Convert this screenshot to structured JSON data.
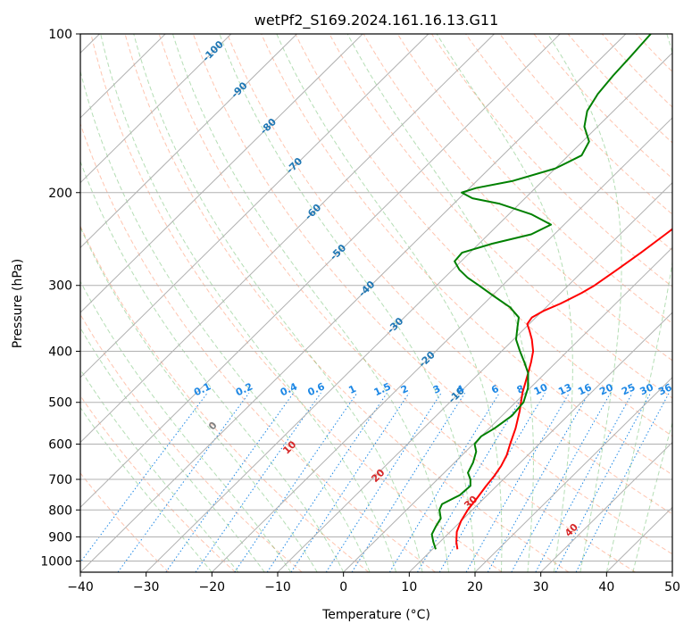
{
  "chart_data": {
    "type": "line",
    "title": "wetPf2_S169.2024.161.16.13.G11",
    "xlabel": "Temperature (°C)",
    "ylabel": "Pressure (hPa)",
    "xlim": [
      -40,
      50
    ],
    "ylim": [
      1050,
      100
    ],
    "y_scale": "log",
    "grid": true,
    "xticks": [
      "−40",
      "−30",
      "−20",
      "−10",
      "0",
      "10",
      "20",
      "30",
      "40",
      "50"
    ],
    "xtick_values": [
      -40,
      -30,
      -20,
      -10,
      0,
      10,
      20,
      30,
      40,
      50
    ],
    "yticks": [
      "100",
      "200",
      "300",
      "400",
      "500",
      "600",
      "700",
      "800",
      "900",
      "1000"
    ],
    "ytick_values": [
      100,
      200,
      300,
      400,
      500,
      600,
      700,
      800,
      900,
      1000
    ],
    "skew_deg_per_decade": 81.2,
    "series": [
      {
        "color": "#ff0000",
        "points": [
          [
            950,
            13.8
          ],
          [
            920,
            12.5
          ],
          [
            880,
            11.0
          ],
          [
            840,
            10.0
          ],
          [
            800,
            9.3
          ],
          [
            760,
            8.9
          ],
          [
            720,
            8.4
          ],
          [
            690,
            8.1
          ],
          [
            660,
            7.6
          ],
          [
            630,
            6.8
          ],
          [
            600,
            5.6
          ],
          [
            560,
            4.0
          ],
          [
            520,
            2.0
          ],
          [
            480,
            -0.4
          ],
          [
            440,
            -2.6
          ],
          [
            420,
            -3.8
          ],
          [
            400,
            -5.2
          ],
          [
            380,
            -7.2
          ],
          [
            365,
            -9.0
          ],
          [
            355,
            -10.3
          ],
          [
            345,
            -10.6
          ],
          [
            335,
            -9.8
          ],
          [
            325,
            -8.4
          ],
          [
            310,
            -6.8
          ],
          [
            300,
            -6.0
          ],
          [
            280,
            -5.0
          ],
          [
            260,
            -4.0
          ],
          [
            240,
            -3.1
          ],
          [
            225,
            -2.4
          ],
          [
            210,
            -2.5
          ],
          [
            195,
            -3.8
          ],
          [
            180,
            -5.6
          ],
          [
            165,
            -7.8
          ],
          [
            150,
            -10.0
          ],
          [
            140,
            -12.0
          ],
          [
            130,
            -14.5
          ],
          [
            122,
            -17.0
          ],
          [
            115,
            -19.5
          ],
          [
            110,
            -21.0
          ],
          [
            105,
            -22.5
          ],
          [
            100,
            -24.0
          ]
        ]
      },
      {
        "color": "#008000",
        "points": [
          [
            950,
            10.5
          ],
          [
            920,
            9.0
          ],
          [
            890,
            7.6
          ],
          [
            860,
            7.0
          ],
          [
            830,
            6.5
          ],
          [
            800,
            5.0
          ],
          [
            780,
            4.5
          ],
          [
            750,
            5.8
          ],
          [
            720,
            6.0
          ],
          [
            700,
            5.0
          ],
          [
            680,
            3.6
          ],
          [
            650,
            2.8
          ],
          [
            620,
            1.6
          ],
          [
            600,
            0.2
          ],
          [
            580,
            0.0
          ],
          [
            560,
            0.8
          ],
          [
            530,
            1.5
          ],
          [
            500,
            1.2
          ],
          [
            470,
            -0.3
          ],
          [
            440,
            -2.6
          ],
          [
            420,
            -4.8
          ],
          [
            400,
            -7.2
          ],
          [
            380,
            -9.6
          ],
          [
            360,
            -11.3
          ],
          [
            345,
            -12.6
          ],
          [
            330,
            -15.5
          ],
          [
            315,
            -19.5
          ],
          [
            300,
            -23.6
          ],
          [
            290,
            -26.5
          ],
          [
            280,
            -29.0
          ],
          [
            270,
            -31.0
          ],
          [
            260,
            -31.2
          ],
          [
            250,
            -28.0
          ],
          [
            240,
            -23.5
          ],
          [
            230,
            -22.0
          ],
          [
            220,
            -26.5
          ],
          [
            210,
            -33.0
          ],
          [
            205,
            -38.0
          ],
          [
            200,
            -40.5
          ],
          [
            196,
            -39.0
          ],
          [
            190,
            -34.5
          ],
          [
            180,
            -30.0
          ],
          [
            170,
            -28.0
          ],
          [
            160,
            -29.0
          ],
          [
            150,
            -32.0
          ],
          [
            140,
            -34.0
          ],
          [
            130,
            -35.0
          ],
          [
            120,
            -35.5
          ],
          [
            110,
            -35.8
          ],
          [
            105,
            -36.0
          ],
          [
            100,
            -36.2
          ]
        ]
      }
    ],
    "background_lines": {
      "isotherm_labels": [
        "-100",
        "-90",
        "-80",
        "-70",
        "-60",
        "-50",
        "-40",
        "-30",
        "-20",
        "-10"
      ],
      "dry_adiabat_labels": [
        "0",
        "10",
        "20",
        "30",
        "40"
      ],
      "mixing_ratio_labels": [
        "0.1",
        "0.2",
        "0.4",
        "0.6",
        "1",
        "1.5",
        "2",
        "3",
        "4",
        "6",
        "8",
        "10",
        "13",
        "16",
        "20",
        "25",
        "30",
        "36"
      ]
    },
    "colors": {
      "temperature": "#ff0000",
      "dewpoint": "#008000",
      "isotherm_label": "#1f77b4",
      "dry_adiabat": "#ff7f50",
      "dry_adiabat_label": "#d62728",
      "moist_adiabat": "#2ca02c",
      "mixing_ratio": "#1e88e5",
      "grid": "#b0b0b0"
    }
  }
}
